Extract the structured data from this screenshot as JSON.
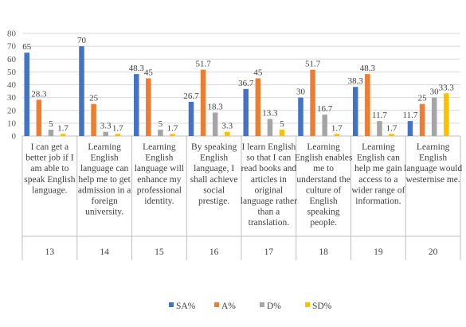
{
  "chart_data": {
    "type": "bar",
    "title": "",
    "xlabel": "",
    "ylabel": "",
    "ylim": [
      0,
      80
    ],
    "yticks": [
      0,
      10,
      20,
      30,
      40,
      50,
      60,
      70,
      80
    ],
    "grid": true,
    "legend_position": "bottom",
    "categories": [
      {
        "text": "I can get a better job if I am able to speak English language.",
        "number": "13"
      },
      {
        "text": "Learning English language can help me to get admission in a foreign university.",
        "number": "14"
      },
      {
        "text": "Learning English language will enhance my professional identity.",
        "number": "15"
      },
      {
        "text": "By speaking English language, I shall achieve social prestige.",
        "number": "16"
      },
      {
        "text": "I learn English so that I can read books and articles in original language rather than a translation.",
        "number": "17"
      },
      {
        "text": "Learning English enables me to understand the culture of English speaking people.",
        "number": "18"
      },
      {
        "text": "Learning English can help me gain access to a wider range of information.",
        "number": "19"
      },
      {
        "text": "Learning English language would westernise me.",
        "number": "20"
      }
    ],
    "series": [
      {
        "name": "SA%",
        "color": "#4472c4",
        "values": [
          65,
          70,
          48.3,
          26.7,
          36.7,
          30,
          38.3,
          11.7
        ]
      },
      {
        "name": "A%",
        "color": "#ed7d31",
        "values": [
          28.3,
          25,
          45,
          51.7,
          45,
          51.7,
          48.3,
          25
        ]
      },
      {
        "name": "D%",
        "color": "#a5a5a5",
        "values": [
          5,
          3.3,
          5,
          18.3,
          13.3,
          16.7,
          11.7,
          30
        ]
      },
      {
        "name": "SD%",
        "color": "#ffc000",
        "values": [
          1.7,
          1.7,
          1.7,
          3.3,
          5,
          1.7,
          1.7,
          33.3
        ]
      }
    ]
  }
}
